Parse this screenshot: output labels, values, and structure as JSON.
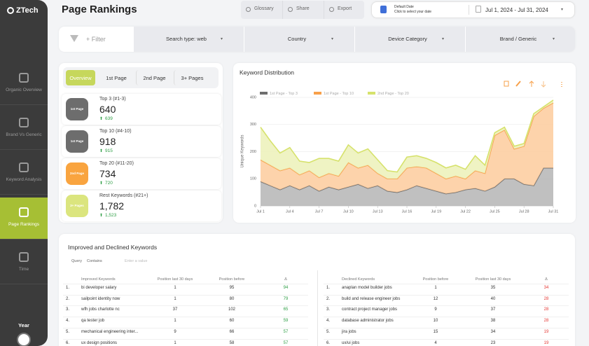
{
  "sidebar": {
    "logo": "ZTech",
    "items": [
      "Organic Overview",
      "Brand Vs Generic",
      "Keyword Analysis",
      "Page Rankings",
      "Time"
    ],
    "active": 3,
    "year_label": "Year"
  },
  "header": {
    "title": "Page Rankings",
    "buttons": [
      "Glossary",
      "Share",
      "Export"
    ],
    "date_picker": {
      "caption": "Default Date",
      "hint": "Click to select your date",
      "range": "Jul 1, 2024 - Jul 31, 2024"
    }
  },
  "filters": {
    "add": "+ Filter",
    "dropdowns": [
      "Search type: web",
      "Country",
      "Device Category",
      "Brand / Generic"
    ]
  },
  "tabs": [
    "Overview",
    "1st Page",
    "2nd Page",
    "3+ Pages"
  ],
  "cards": [
    {
      "badge": "1st Page",
      "badge_color": "#6d6d6d",
      "label": "Top 3 (#1-3)",
      "value": 640,
      "change": 639
    },
    {
      "badge": "1st Page",
      "badge_color": "#6d6d6d",
      "label": "Top 10 (#4-10)",
      "value": 918,
      "change": 915
    },
    {
      "badge": "2nd Page",
      "badge_color": "#f9a43f",
      "label": "Top 20 (#11-20)",
      "value": 734,
      "change": 720
    },
    {
      "badge": "3+ Pages",
      "badge_color": "#dbe57e",
      "label": "Rest Keywords (#21+)",
      "value": "1,782",
      "change": "1,523"
    }
  ],
  "chart_data": {
    "type": "area",
    "stacked": true,
    "title": "Keyword Distribution",
    "y_label": "Unique Keywords",
    "categories": [
      "Jul 1",
      null,
      null,
      "Jul 4",
      null,
      null,
      "Jul 7",
      null,
      null,
      "Jul 10",
      null,
      null,
      "Jul 13",
      null,
      null,
      "Jul 16",
      null,
      null,
      "Jul 19",
      null,
      null,
      "Jul 22",
      null,
      null,
      "Jul 25",
      null,
      null,
      "Jul 28",
      null,
      null,
      "Jul 31"
    ],
    "series": [
      {
        "name": "1st Page - Top 3",
        "color": "#6e6e6e",
        "values": [
          90,
          75,
          60,
          75,
          60,
          75,
          55,
          70,
          60,
          70,
          80,
          65,
          75,
          55,
          50,
          60,
          75,
          65,
          55,
          45,
          50,
          60,
          65,
          55,
          70,
          100,
          100,
          80,
          75,
          140,
          140
        ]
      },
      {
        "name": "1st Page - Top 10",
        "color": "#f7a04a",
        "values": [
          80,
          75,
          70,
          65,
          55,
          55,
          50,
          50,
          50,
          90,
          60,
          85,
          45,
          45,
          50,
          80,
          70,
          75,
          65,
          55,
          60,
          40,
          65,
          65,
          190,
          180,
          110,
          140,
          255,
          220,
          240
        ]
      },
      {
        "name": "2nd Page - Top 20",
        "color": "#d6e26c",
        "values": [
          120,
          90,
          65,
          75,
          50,
          30,
          70,
          55,
          55,
          65,
          55,
          60,
          50,
          30,
          25,
          40,
          40,
          35,
          40,
          40,
          40,
          35,
          55,
          30,
          10,
          10,
          10,
          10,
          10,
          5,
          10
        ]
      }
    ],
    "ylim": [
      0,
      400
    ],
    "yticks": [
      0,
      100,
      200,
      300,
      400
    ],
    "grid": true
  },
  "table": {
    "title": "Improved and Declined Keywords",
    "query_label": "Query",
    "operator": "Contains",
    "placeholder": "Enter a value",
    "improved": {
      "headers": [
        "Improved Keywords",
        "Position last 30 days",
        "Position before",
        "Δ"
      ],
      "delta_color": "#2e9e45",
      "rows": [
        [
          "1.",
          "bi developer salary",
          1,
          95,
          94
        ],
        [
          "2.",
          "sailpoint identity now",
          1,
          80,
          79
        ],
        [
          "3.",
          "wfh jobs charlotte nc",
          37,
          102,
          65
        ],
        [
          "4.",
          "qa tester job",
          1,
          60,
          59
        ],
        [
          "5.",
          "mechanical engineering inter...",
          9,
          66,
          57
        ],
        [
          "6.",
          "ux design positions",
          1,
          58,
          57
        ]
      ]
    },
    "declined": {
      "headers": [
        "Declined Keywords",
        "Position before",
        "Position last 30 days",
        "Δ"
      ],
      "delta_color": "#e53935",
      "rows": [
        [
          "1.",
          "anaplan model builder jobs",
          1,
          35,
          34
        ],
        [
          "2.",
          "build and release engineer jobs",
          12,
          40,
          28
        ],
        [
          "3.",
          "contract project manager jobs",
          9,
          37,
          28
        ],
        [
          "4.",
          "database administrator jobs",
          10,
          38,
          28
        ],
        [
          "5.",
          "jira jobs",
          15,
          34,
          19
        ],
        [
          "6.",
          "ux/ui jobs",
          4,
          23,
          19
        ]
      ]
    }
  }
}
